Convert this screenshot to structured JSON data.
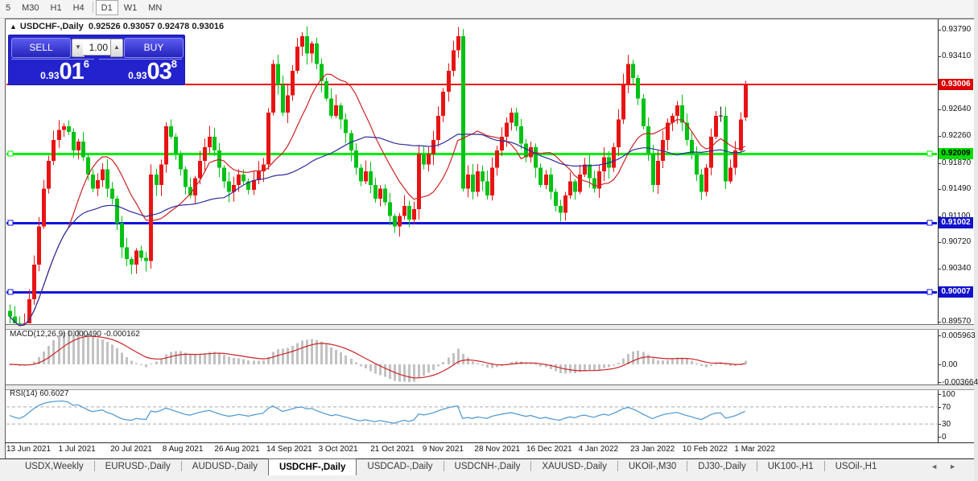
{
  "toolbar": {
    "timeframes": [
      {
        "label": "5",
        "active": false
      },
      {
        "label": "M30",
        "active": false
      },
      {
        "label": "H1",
        "active": false
      },
      {
        "label": "H4",
        "active": false
      },
      {
        "label": "D1",
        "active": true
      },
      {
        "label": "W1",
        "active": false
      },
      {
        "label": "MN",
        "active": false
      }
    ]
  },
  "chart": {
    "collapse_marker": "▲",
    "title": "USDCHF-,Daily",
    "ohlc_text": "0.92526 0.93057 0.92478 0.93016"
  },
  "one_click": {
    "sell_label": "SELL",
    "buy_label": "BUY",
    "volume": "1.00",
    "spin_down": "▼",
    "spin_up": "▲",
    "bid": 0.93016,
    "ask": 0.93038,
    "sell_price": {
      "prefix": "0.93",
      "big": "01",
      "sup": "6"
    },
    "buy_price": {
      "prefix": "0.93",
      "big": "03",
      "sup": "8"
    }
  },
  "macd_pane": {
    "name": "MACD(12,26,9)",
    "main_value": "0.000490",
    "signal_value": "-0.000162",
    "axis_ticks": [
      "0.005963",
      "0.00",
      "-0.003664"
    ]
  },
  "rsi_pane": {
    "name": "RSI(14)",
    "value": "60.6027",
    "axis_ticks": [
      "100",
      "70",
      "30",
      "0"
    ]
  },
  "tab_bar": {
    "items": [
      {
        "label": "USDX,Weekly",
        "active": false
      },
      {
        "label": "EURUSD-,Daily",
        "active": false
      },
      {
        "label": "AUDUSD-,Daily",
        "active": false
      },
      {
        "label": "USDCHF-,Daily",
        "active": true
      },
      {
        "label": "USDCAD-,Daily",
        "active": false
      },
      {
        "label": "USDCNH-,Daily",
        "active": false
      },
      {
        "label": "XAUUSD-,Daily",
        "active": false
      },
      {
        "label": "UKOil-,M30",
        "active": false
      },
      {
        "label": "DJ30-,Daily",
        "active": false
      },
      {
        "label": "UK100-,H1",
        "active": false
      },
      {
        "label": "USOil-,H1",
        "active": false
      }
    ],
    "scroll_left": "◄",
    "scroll_right": "►"
  },
  "chart_data": {
    "type": "candlestick",
    "symbol": "USDCHF-",
    "timeframe": "Daily",
    "note": "Inverted color scheme: bullish candles red, bearish candles green",
    "colors": {
      "up": "#e81414",
      "down": "#00c214",
      "doji": "#1a1a1a",
      "ma_fast": "#cc2222",
      "ma_slow": "#2e2e9e",
      "macd_hist": "#c2c2c2",
      "macd_signal": "#cc2222",
      "rsi_line": "#4a96d2",
      "rsi_level": "#aaaaaa"
    },
    "price_range": {
      "min": 0.8955,
      "max": 0.939
    },
    "y_axis_ticks": [
      "0.93790",
      "0.93410",
      "0.92640",
      "0.92260",
      "0.91870",
      "0.91490",
      "0.91100",
      "0.90720",
      "0.90340",
      "0.89570"
    ],
    "x_axis_dates": [
      "13 Jun 2021",
      "1 Jul 2021",
      "20 Jul 2021",
      "8 Aug 2021",
      "26 Aug 2021",
      "14 Sep 2021",
      "3 Oct 2021",
      "21 Oct 2021",
      "9 Nov 2021",
      "28 Nov 2021",
      "16 Dec 2021",
      "4 Jan 2022",
      "23 Jan 2022",
      "10 Feb 2022",
      "1 Mar 2022"
    ],
    "horizontal_lines": [
      {
        "price": 0.93006,
        "label": "0.93006",
        "color": "#ee1111",
        "badge_bg": "#dd0000",
        "badge_fg": "#ffffff",
        "width": 2,
        "anchors": false
      },
      {
        "price": 0.92009,
        "label": "0.92009",
        "color": "#00ee00",
        "badge_bg": "#00dd00",
        "badge_fg": "#000000",
        "width": 3,
        "anchors": true
      },
      {
        "price": 0.91002,
        "label": "0.91002",
        "color": "#1212dd",
        "badge_bg": "#1212cc",
        "badge_fg": "#ffffff",
        "width": 3,
        "anchors": true
      },
      {
        "price": 0.90007,
        "label": "0.90007",
        "color": "#1212dd",
        "badge_bg": "#1212cc",
        "badge_fg": "#ffffff",
        "width": 3,
        "anchors": true
      }
    ],
    "moving_averages": [
      {
        "period": 13,
        "color": "#cc2222"
      },
      {
        "period": 45,
        "color": "#2e2e9e"
      }
    ],
    "last_candle": {
      "open": 0.92526,
      "high": 0.93057,
      "low": 0.92478,
      "close": 0.93016
    },
    "closes_estimated": [
      0.8965,
      0.895,
      0.894,
      0.8955,
      0.899,
      0.904,
      0.9095,
      0.915,
      0.919,
      0.922,
      0.9235,
      0.924,
      0.9232,
      0.9205,
      0.9218,
      0.9195,
      0.917,
      0.915,
      0.9162,
      0.9178,
      0.915,
      0.9135,
      0.91,
      0.9065,
      0.9048,
      0.904,
      0.906,
      0.905,
      0.9045,
      0.917,
      0.9155,
      0.9185,
      0.924,
      0.9225,
      0.92,
      0.9178,
      0.9152,
      0.914,
      0.9165,
      0.919,
      0.921,
      0.9225,
      0.9205,
      0.918,
      0.916,
      0.9145,
      0.9155,
      0.917,
      0.916,
      0.9148,
      0.9162,
      0.9175,
      0.9185,
      0.926,
      0.933,
      0.93,
      0.926,
      0.9285,
      0.932,
      0.9355,
      0.937,
      0.9345,
      0.936,
      0.933,
      0.9305,
      0.928,
      0.9255,
      0.927,
      0.925,
      0.923,
      0.9205,
      0.918,
      0.916,
      0.9175,
      0.9155,
      0.9135,
      0.915,
      0.913,
      0.911,
      0.9095,
      0.911,
      0.9125,
      0.9105,
      0.912,
      0.92,
      0.9185,
      0.92,
      0.922,
      0.9255,
      0.929,
      0.932,
      0.935,
      0.937,
      0.915,
      0.917,
      0.9145,
      0.9175,
      0.916,
      0.914,
      0.918,
      0.9205,
      0.9225,
      0.9245,
      0.926,
      0.924,
      0.9215,
      0.9195,
      0.921,
      0.918,
      0.9155,
      0.917,
      0.9145,
      0.9125,
      0.9115,
      0.914,
      0.916,
      0.9145,
      0.917,
      0.9185,
      0.9165,
      0.915,
      0.9175,
      0.9195,
      0.918,
      0.921,
      0.925,
      0.93,
      0.933,
      0.931,
      0.928,
      0.924,
      0.92,
      0.9155,
      0.919,
      0.922,
      0.9245,
      0.9255,
      0.927,
      0.9245,
      0.922,
      0.92,
      0.917,
      0.9145,
      0.918,
      0.9225,
      0.9255,
      0.9255,
      0.916,
      0.918,
      0.9205,
      0.925,
      0.93016
    ],
    "indicators": [
      {
        "type": "MACD",
        "params": [
          12,
          26,
          9
        ],
        "current_main": 0.00049,
        "current_signal": -0.000162,
        "axis_range": [
          -0.003664,
          0.005963
        ],
        "legend_position": "top-left"
      },
      {
        "type": "RSI",
        "params": [
          14
        ],
        "current": 60.6027,
        "levels": [
          70,
          30
        ],
        "axis_range": [
          0,
          100
        ],
        "legend_position": "top-left"
      }
    ],
    "grid": false,
    "legend_position": "top-left"
  }
}
